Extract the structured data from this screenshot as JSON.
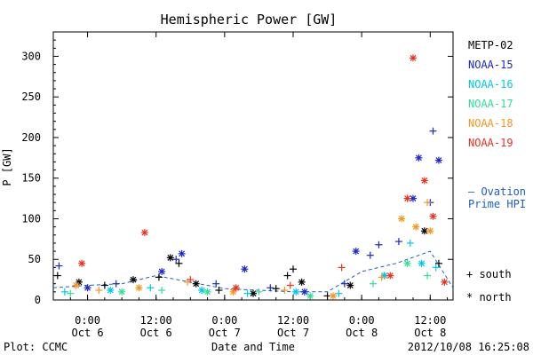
{
  "chart_data": {
    "type": "scatter",
    "title": "Hemispheric Power [GW]",
    "ylabel": "P [GW]",
    "xlabel": "Date and Time",
    "ylim": [
      0,
      330
    ],
    "y_ticks": [
      0,
      50,
      100,
      150,
      200,
      250,
      300
    ],
    "x_range": [
      "2012-10-05T18:00",
      "2012-10-08T16:00"
    ],
    "x_ticks": [
      {
        "time": "2012-10-06T00:00",
        "line1": "0:00",
        "line2": "Oct 6"
      },
      {
        "time": "2012-10-06T12:00",
        "line1": "12:00",
        "line2": "Oct 6"
      },
      {
        "time": "2012-10-07T00:00",
        "line1": "0:00",
        "line2": "Oct 7"
      },
      {
        "time": "2012-10-07T12:00",
        "line1": "12:00",
        "line2": "Oct 7"
      },
      {
        "time": "2012-10-08T00:00",
        "line1": "0:00",
        "line2": "Oct 8"
      },
      {
        "time": "2012-10-08T12:00",
        "line1": "12:00",
        "line2": "Oct 8"
      }
    ],
    "legend": {
      "placement": "right",
      "symbols": [
        {
          "glyph": "+",
          "label": "south"
        },
        {
          "glyph": "*",
          "label": "north"
        }
      ],
      "ovation_label_line1": "– Ovation",
      "ovation_label_line2": "Prime HPI",
      "ovation_color": "#1f5fbf"
    },
    "series": [
      {
        "name": "METP-02",
        "color": "#000000",
        "points": [
          {
            "t": "2012-10-05T18:45",
            "y": 30,
            "m": "+"
          },
          {
            "t": "2012-10-05T22:30",
            "y": 22,
            "m": "*"
          },
          {
            "t": "2012-10-06T03:00",
            "y": 18,
            "m": "+"
          },
          {
            "t": "2012-10-06T08:00",
            "y": 25,
            "m": "*"
          },
          {
            "t": "2012-10-06T12:30",
            "y": 28,
            "m": "+"
          },
          {
            "t": "2012-10-06T14:30",
            "y": 52,
            "m": "*"
          },
          {
            "t": "2012-10-06T16:00",
            "y": 45,
            "m": "+"
          },
          {
            "t": "2012-10-06T19:00",
            "y": 20,
            "m": "*"
          },
          {
            "t": "2012-10-06T23:00",
            "y": 12,
            "m": "+"
          },
          {
            "t": "2012-10-07T05:00",
            "y": 8,
            "m": "*"
          },
          {
            "t": "2012-10-07T09:00",
            "y": 14,
            "m": "+"
          },
          {
            "t": "2012-10-07T11:00",
            "y": 30,
            "m": "+"
          },
          {
            "t": "2012-10-07T12:00",
            "y": 38,
            "m": "+"
          },
          {
            "t": "2012-10-07T13:30",
            "y": 22,
            "m": "*"
          },
          {
            "t": "2012-10-07T18:00",
            "y": 5,
            "m": "+"
          },
          {
            "t": "2012-10-07T22:00",
            "y": 18,
            "m": "*"
          },
          {
            "t": "2012-10-08T04:00",
            "y": 30,
            "m": "+"
          },
          {
            "t": "2012-10-08T11:00",
            "y": 85,
            "m": "*"
          },
          {
            "t": "2012-10-08T13:30",
            "y": 45,
            "m": "+"
          }
        ]
      },
      {
        "name": "NOAA-15",
        "color": "#1e28c8",
        "points": [
          {
            "t": "2012-10-05T19:00",
            "y": 42,
            "m": "+"
          },
          {
            "t": "2012-10-06T00:00",
            "y": 15,
            "m": "*"
          },
          {
            "t": "2012-10-06T05:00",
            "y": 20,
            "m": "+"
          },
          {
            "t": "2012-10-06T13:00",
            "y": 35,
            "m": "*"
          },
          {
            "t": "2012-10-06T15:30",
            "y": 50,
            "m": "+"
          },
          {
            "t": "2012-10-06T16:30",
            "y": 57,
            "m": "*"
          },
          {
            "t": "2012-10-06T22:30",
            "y": 20,
            "m": "+"
          },
          {
            "t": "2012-10-07T03:30",
            "y": 38,
            "m": "*"
          },
          {
            "t": "2012-10-07T08:00",
            "y": 15,
            "m": "+"
          },
          {
            "t": "2012-10-07T14:00",
            "y": 10,
            "m": "*"
          },
          {
            "t": "2012-10-07T21:00",
            "y": 20,
            "m": "+"
          },
          {
            "t": "2012-10-07T23:00",
            "y": 60,
            "m": "*"
          },
          {
            "t": "2012-10-08T01:30",
            "y": 55,
            "m": "+"
          },
          {
            "t": "2012-10-08T03:00",
            "y": 68,
            "m": "+"
          },
          {
            "t": "2012-10-08T06:30",
            "y": 72,
            "m": "+"
          },
          {
            "t": "2012-10-08T09:00",
            "y": 125,
            "m": "*"
          },
          {
            "t": "2012-10-08T10:00",
            "y": 175,
            "m": "*"
          },
          {
            "t": "2012-10-08T12:00",
            "y": 120,
            "m": "+"
          },
          {
            "t": "2012-10-08T12:30",
            "y": 208,
            "m": "+"
          },
          {
            "t": "2012-10-08T13:30",
            "y": 172,
            "m": "*"
          }
        ]
      },
      {
        "name": "NOAA-16",
        "color": "#00c8e6",
        "points": [
          {
            "t": "2012-10-05T20:00",
            "y": 10,
            "m": "+"
          },
          {
            "t": "2012-10-06T04:00",
            "y": 12,
            "m": "*"
          },
          {
            "t": "2012-10-06T11:00",
            "y": 15,
            "m": "+"
          },
          {
            "t": "2012-10-06T20:00",
            "y": 12,
            "m": "*"
          },
          {
            "t": "2012-10-07T04:00",
            "y": 8,
            "m": "+"
          },
          {
            "t": "2012-10-07T12:30",
            "y": 10,
            "m": "*"
          },
          {
            "t": "2012-10-07T20:00",
            "y": 8,
            "m": "+"
          },
          {
            "t": "2012-10-08T04:00",
            "y": 30,
            "m": "*"
          },
          {
            "t": "2012-10-08T08:30",
            "y": 70,
            "m": "+"
          },
          {
            "t": "2012-10-08T10:30",
            "y": 45,
            "m": "*"
          },
          {
            "t": "2012-10-08T13:00",
            "y": 40,
            "m": "+"
          }
        ]
      },
      {
        "name": "NOAA-17",
        "color": "#33dd99",
        "points": [
          {
            "t": "2012-10-05T21:00",
            "y": 8,
            "m": "+"
          },
          {
            "t": "2012-10-06T06:00",
            "y": 10,
            "m": "*"
          },
          {
            "t": "2012-10-06T13:00",
            "y": 12,
            "m": "+"
          },
          {
            "t": "2012-10-06T21:00",
            "y": 10,
            "m": "*"
          },
          {
            "t": "2012-10-07T06:00",
            "y": 10,
            "m": "+"
          },
          {
            "t": "2012-10-07T15:00",
            "y": 5,
            "m": "*"
          },
          {
            "t": "2012-10-08T02:00",
            "y": 20,
            "m": "+"
          },
          {
            "t": "2012-10-08T08:00",
            "y": 45,
            "m": "*"
          },
          {
            "t": "2012-10-08T11:30",
            "y": 30,
            "m": "+"
          }
        ]
      },
      {
        "name": "NOAA-18",
        "color": "#f5961e",
        "points": [
          {
            "t": "2012-10-05T22:00",
            "y": 18,
            "m": "*"
          },
          {
            "t": "2012-10-06T02:00",
            "y": 12,
            "m": "+"
          },
          {
            "t": "2012-10-06T09:00",
            "y": 15,
            "m": "*"
          },
          {
            "t": "2012-10-06T17:30",
            "y": 22,
            "m": "+"
          },
          {
            "t": "2012-10-07T01:30",
            "y": 10,
            "m": "*"
          },
          {
            "t": "2012-10-07T10:30",
            "y": 12,
            "m": "+"
          },
          {
            "t": "2012-10-07T19:00",
            "y": 5,
            "m": "*"
          },
          {
            "t": "2012-10-08T03:30",
            "y": 28,
            "m": "+"
          },
          {
            "t": "2012-10-08T07:00",
            "y": 100,
            "m": "*"
          },
          {
            "t": "2012-10-08T09:30",
            "y": 90,
            "m": "*"
          },
          {
            "t": "2012-10-08T11:30",
            "y": 120,
            "m": "+"
          },
          {
            "t": "2012-10-08T12:00",
            "y": 85,
            "m": "*"
          }
        ]
      },
      {
        "name": "NOAA-19",
        "color": "#e6321e",
        "points": [
          {
            "t": "2012-10-05T23:00",
            "y": 45,
            "m": "*"
          },
          {
            "t": "2012-10-06T10:00",
            "y": 83,
            "m": "*"
          },
          {
            "t": "2012-10-06T18:00",
            "y": 25,
            "m": "+"
          },
          {
            "t": "2012-10-07T02:00",
            "y": 15,
            "m": "*"
          },
          {
            "t": "2012-10-07T11:30",
            "y": 18,
            "m": "+"
          },
          {
            "t": "2012-10-07T20:30",
            "y": 40,
            "m": "+"
          },
          {
            "t": "2012-10-08T05:00",
            "y": 30,
            "m": "*"
          },
          {
            "t": "2012-10-08T08:00",
            "y": 125,
            "m": "*"
          },
          {
            "t": "2012-10-08T09:00",
            "y": 298,
            "m": "*"
          },
          {
            "t": "2012-10-08T11:00",
            "y": 147,
            "m": "*"
          },
          {
            "t": "2012-10-08T12:30",
            "y": 103,
            "m": "*"
          },
          {
            "t": "2012-10-08T14:30",
            "y": 22,
            "m": "*"
          }
        ]
      }
    ],
    "ovation_hpi": {
      "name": "Ovation Prime HPI",
      "color": "#1f5fbf",
      "points": [
        {
          "t": "2012-10-05T18:00",
          "y": 15
        },
        {
          "t": "2012-10-06T00:00",
          "y": 18
        },
        {
          "t": "2012-10-06T06:00",
          "y": 20
        },
        {
          "t": "2012-10-06T12:00",
          "y": 30
        },
        {
          "t": "2012-10-06T18:00",
          "y": 22
        },
        {
          "t": "2012-10-07T00:00",
          "y": 14
        },
        {
          "t": "2012-10-07T06:00",
          "y": 12
        },
        {
          "t": "2012-10-07T12:00",
          "y": 10
        },
        {
          "t": "2012-10-07T18:00",
          "y": 10
        },
        {
          "t": "2012-10-08T00:00",
          "y": 35
        },
        {
          "t": "2012-10-08T06:00",
          "y": 45
        },
        {
          "t": "2012-10-08T12:00",
          "y": 60
        },
        {
          "t": "2012-10-08T16:00",
          "y": 15
        }
      ]
    }
  },
  "footer": {
    "plot_credit": "Plot: CCMC",
    "timestamp": "2012/10/08 16:25:08"
  }
}
